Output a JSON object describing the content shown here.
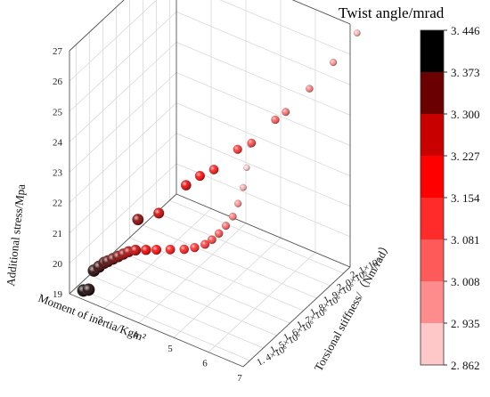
{
  "chart_data": {
    "type": "scatter",
    "title": "",
    "xlabel": "Moment of inertia/Kgm²",
    "ylabel": "Torsional stiffness/（Nm/rad）",
    "zlabel": "Additional stress/Mpa",
    "xlim": [
      2,
      7
    ],
    "ylim": [
      1300000,
      2100000
    ],
    "zlim": [
      19,
      27
    ],
    "x_ticks": [
      "3",
      "4",
      "5",
      "6",
      "7"
    ],
    "y_ticks": [
      "1. 4×10⁶",
      "1. 5×10⁶",
      "1. 6×10⁶",
      "1. 7×10⁶",
      "1. 8×10⁶",
      "1. 9×10⁶",
      "2. 0×10⁶",
      "2. 1×10⁶"
    ],
    "z_ticks": [
      "19",
      "20",
      "21",
      "22",
      "23",
      "24",
      "25",
      "26",
      "27"
    ],
    "grid": true,
    "colorbar": {
      "title": "Twist angle/mrad",
      "labels": [
        "3. 446",
        "3. 373",
        "3. 300",
        "3. 227",
        "3. 154",
        "3. 081",
        "3. 008",
        "2. 935",
        "2. 862"
      ],
      "colors": [
        "#000000",
        "#6b0000",
        "#c80000",
        "#ff0000",
        "#ff2a2a",
        "#ff5a5a",
        "#ff8c8c",
        "#ffc8c8",
        "#ffffff"
      ]
    },
    "points": [
      {
        "x": 2.4,
        "y": 1300000,
        "z": 19.3,
        "c": 3.44
      },
      {
        "x": 2.55,
        "y": 1300000,
        "z": 19.4,
        "c": 3.43
      },
      {
        "x": 2.7,
        "y": 1300000,
        "z": 20.1,
        "c": 3.42
      },
      {
        "x": 2.85,
        "y": 1300000,
        "z": 20.3,
        "c": 3.41
      },
      {
        "x": 3.0,
        "y": 1300000,
        "z": 20.5,
        "c": 3.4
      },
      {
        "x": 3.1,
        "y": 1300000,
        "z": 20.6,
        "c": 3.39
      },
      {
        "x": 3.25,
        "y": 1300000,
        "z": 20.75,
        "c": 3.38
      },
      {
        "x": 3.4,
        "y": 1300000,
        "z": 20.9,
        "c": 3.36
      },
      {
        "x": 3.55,
        "y": 1300000,
        "z": 21.05,
        "c": 3.34
      },
      {
        "x": 3.7,
        "y": 1300000,
        "z": 21.2,
        "c": 3.32
      },
      {
        "x": 3.9,
        "y": 1300000,
        "z": 21.35,
        "c": 3.3
      },
      {
        "x": 4.2,
        "y": 1300000,
        "z": 21.5,
        "c": 3.25
      },
      {
        "x": 4.5,
        "y": 1300000,
        "z": 21.65,
        "c": 3.22
      },
      {
        "x": 4.9,
        "y": 1300000,
        "z": 21.85,
        "c": 3.2
      },
      {
        "x": 5.3,
        "y": 1300000,
        "z": 22.05,
        "c": 3.18
      },
      {
        "x": 5.6,
        "y": 1300000,
        "z": 22.25,
        "c": 3.16
      },
      {
        "x": 5.9,
        "y": 1300000,
        "z": 22.5,
        "c": 3.14
      },
      {
        "x": 6.1,
        "y": 1300000,
        "z": 22.75,
        "c": 3.12
      },
      {
        "x": 6.3,
        "y": 1300000,
        "z": 23.05,
        "c": 3.1
      },
      {
        "x": 6.5,
        "y": 1300000,
        "z": 23.4,
        "c": 3.07
      },
      {
        "x": 6.7,
        "y": 1300000,
        "z": 23.8,
        "c": 3.04
      },
      {
        "x": 6.85,
        "y": 1300000,
        "z": 24.3,
        "c": 3.01
      },
      {
        "x": 7.0,
        "y": 1300000,
        "z": 24.9,
        "c": 2.97
      },
      {
        "x": 7.1,
        "y": 1300000,
        "z": 25.6,
        "c": 2.93
      },
      {
        "x": 7.2,
        "y": 1300000,
        "z": 26.4,
        "c": 2.88
      },
      {
        "x": 3.2,
        "y": 1500000,
        "z": 21.2,
        "c": 3.35
      },
      {
        "x": 3.8,
        "y": 1500000,
        "z": 21.7,
        "c": 3.29
      },
      {
        "x": 4.2,
        "y": 1600000,
        "z": 22.4,
        "c": 3.26
      },
      {
        "x": 4.6,
        "y": 1600000,
        "z": 22.9,
        "c": 3.22
      },
      {
        "x": 5.0,
        "y": 1600000,
        "z": 23.3,
        "c": 3.19
      },
      {
        "x": 5.3,
        "y": 1700000,
        "z": 23.7,
        "c": 3.15
      },
      {
        "x": 5.7,
        "y": 1700000,
        "z": 24.1,
        "c": 3.12
      },
      {
        "x": 6.0,
        "y": 1800000,
        "z": 24.6,
        "c": 3.09
      },
      {
        "x": 6.3,
        "y": 1800000,
        "z": 25.0,
        "c": 3.06
      },
      {
        "x": 6.6,
        "y": 1900000,
        "z": 25.5,
        "c": 3.03
      },
      {
        "x": 6.9,
        "y": 2000000,
        "z": 26.1,
        "c": 3.0
      },
      {
        "x": 7.2,
        "y": 2100000,
        "z": 26.8,
        "c": 2.96
      }
    ]
  }
}
